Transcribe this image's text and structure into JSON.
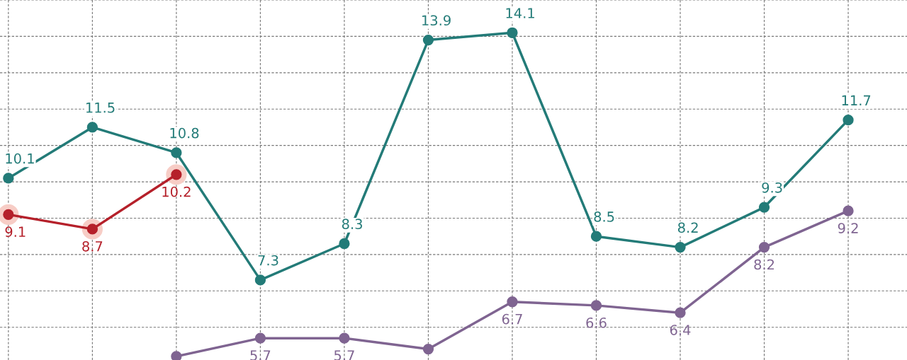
{
  "chart_data": {
    "type": "line",
    "categories": [
      null,
      null,
      null,
      null,
      null,
      null,
      null,
      null,
      null,
      null,
      null
    ],
    "ylim": [
      5.1,
      15
    ],
    "yticks": [
      {
        "value": 6,
        "label": null
      },
      {
        "value": 7,
        "label": null
      },
      {
        "value": 8,
        "label": null
      },
      {
        "value": 9,
        "label": null
      },
      {
        "value": 10,
        "label": null
      },
      {
        "value": 11,
        "label": null
      },
      {
        "value": 12,
        "label": null
      },
      {
        "value": 13,
        "label": null
      },
      {
        "value": 14,
        "label": null
      },
      {
        "value": 15,
        "label": null
      }
    ],
    "grid": true,
    "marker": "circle",
    "line_style": "solid",
    "series": [
      {
        "color": "#237b78",
        "values": [
          10.1,
          11.5,
          10.8,
          7.3,
          8.3,
          13.9,
          14.1,
          8.5,
          8.2,
          9.3,
          11.7
        ],
        "value_labels": [
          "10.1",
          "11.5",
          "10.8",
          "7.3",
          "8.3",
          "13.9",
          "14.1",
          "8.5",
          "8.2",
          "9.3",
          "11.7"
        ]
      },
      {
        "color": "#b5202a",
        "values": [
          9.1,
          8.7,
          10.2,
          null,
          null,
          null,
          null,
          null,
          null,
          null,
          null
        ],
        "value_labels": [
          "9.1",
          "8.7",
          "10.2",
          null,
          null,
          null,
          null,
          null,
          null,
          null,
          null
        ]
      },
      {
        "color": "#7f6491",
        "values": [
          null,
          null,
          5.2,
          5.7,
          5.7,
          5.4,
          6.7,
          6.6,
          6.4,
          8.2,
          9.2
        ],
        "value_labels": [
          null,
          null,
          null,
          "5.7",
          "5.7",
          null,
          "6.7",
          "6.6",
          "6.4",
          "8.2",
          "9.2"
        ]
      }
    ]
  }
}
